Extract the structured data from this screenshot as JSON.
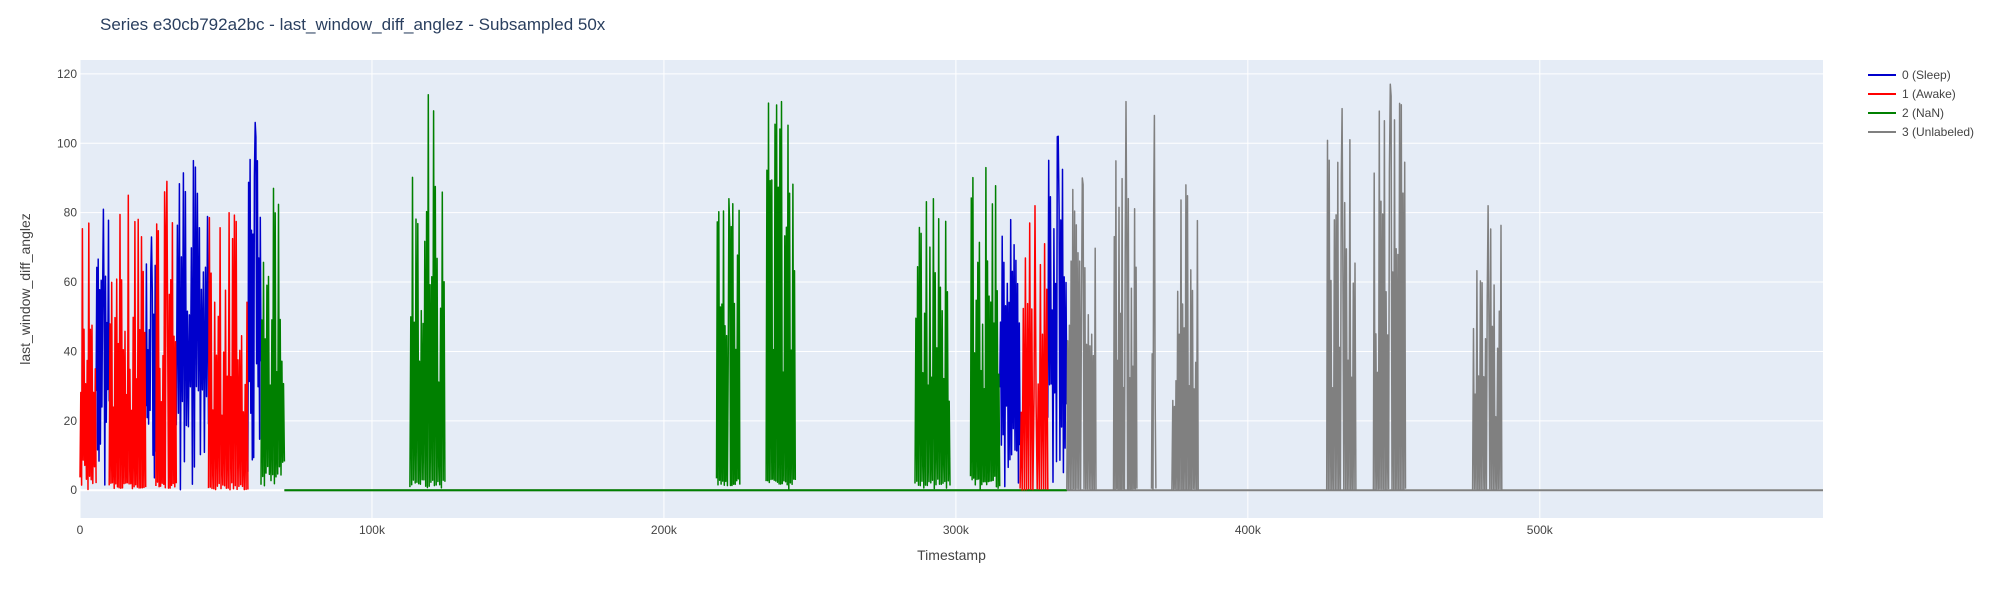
{
  "chart_data": {
    "type": "line",
    "title": "Series e30cb792a2bc - last_window_diff_anglez - Subsampled 50x",
    "xlabel": "Timestamp",
    "ylabel": "last_window_diff_anglez",
    "xlim": [
      0,
      597000
    ],
    "ylim": [
      -8,
      124
    ],
    "x_ticks": [
      0,
      100000,
      200000,
      300000,
      400000,
      500000
    ],
    "x_tick_labels": [
      "0",
      "100k",
      "200k",
      "300k",
      "400k",
      "500k"
    ],
    "y_ticks": [
      0,
      20,
      40,
      60,
      80,
      100,
      120
    ],
    "y_tick_labels": [
      "0",
      "20",
      "40",
      "60",
      "80",
      "100",
      "120"
    ],
    "grid": true,
    "legend_position": "top-right",
    "background_color": "#e5ecf6",
    "series": [
      {
        "name": "0 (Sleep)",
        "color": "#0000cc",
        "segments": [
          {
            "x_start": 5500,
            "x_end": 10000,
            "max": 81,
            "base": 30,
            "count": 18
          },
          {
            "x_start": 22500,
            "x_end": 26000,
            "max": 73,
            "base": 25,
            "count": 14
          },
          {
            "x_start": 33000,
            "x_end": 44000,
            "max": 95,
            "base": 30,
            "count": 32
          },
          {
            "x_start": 57500,
            "x_end": 62000,
            "max": 106,
            "base": 45,
            "count": 18
          },
          {
            "x_start": 315000,
            "x_end": 322000,
            "max": 78,
            "base": 30,
            "count": 24
          },
          {
            "x_start": 331500,
            "x_end": 338000,
            "max": 102,
            "base": 35,
            "count": 22
          }
        ]
      },
      {
        "name": "1 (Awake)",
        "color": "#ff0000",
        "segments": [
          {
            "x_start": 0,
            "x_end": 5500,
            "max": 77,
            "base": 10,
            "count": 20
          },
          {
            "x_start": 10000,
            "x_end": 22500,
            "max": 85,
            "base": 2,
            "count": 44
          },
          {
            "x_start": 26000,
            "x_end": 33000,
            "max": 89,
            "base": 2,
            "count": 26
          },
          {
            "x_start": 44000,
            "x_end": 57500,
            "max": 80,
            "base": 2,
            "count": 44
          },
          {
            "x_start": 322000,
            "x_end": 331500,
            "max": 82,
            "base": 0,
            "count": 26
          }
        ]
      },
      {
        "name": "2 (NaN)",
        "color": "#008000",
        "segments": [
          {
            "x_start": 62000,
            "x_end": 70000,
            "max": 87,
            "base": 8,
            "count": 28
          },
          {
            "x_start": 113000,
            "x_end": 125000,
            "max": 114,
            "base": 3,
            "count": 40
          },
          {
            "x_start": 218000,
            "x_end": 226000,
            "max": 84,
            "base": 3,
            "count": 30
          },
          {
            "x_start": 235000,
            "x_end": 245000,
            "max": 112,
            "base": 3,
            "count": 36
          },
          {
            "x_start": 286000,
            "x_end": 298000,
            "max": 84,
            "base": 3,
            "count": 40
          },
          {
            "x_start": 305000,
            "x_end": 315000,
            "max": 93,
            "base": 4,
            "count": 36
          }
        ]
      },
      {
        "name": "3 (Unlabeled)",
        "color": "#808080",
        "segments": [
          {
            "x_start": 338000,
            "x_end": 348000,
            "max": 90,
            "base": 0,
            "count": 34
          },
          {
            "x_start": 354000,
            "x_end": 362000,
            "max": 112,
            "base": 0,
            "count": 30
          },
          {
            "x_start": 367000,
            "x_end": 368500,
            "max": 108,
            "base": 0,
            "count": 6
          },
          {
            "x_start": 374000,
            "x_end": 383000,
            "max": 88,
            "base": 0,
            "count": 32
          },
          {
            "x_start": 427000,
            "x_end": 437000,
            "max": 110,
            "base": 0,
            "count": 34
          },
          {
            "x_start": 443000,
            "x_end": 454000,
            "max": 117,
            "base": 0,
            "count": 38
          },
          {
            "x_start": 477000,
            "x_end": 487000,
            "max": 82,
            "base": 0,
            "count": 34
          }
        ],
        "flat_value": 0
      }
    ]
  }
}
